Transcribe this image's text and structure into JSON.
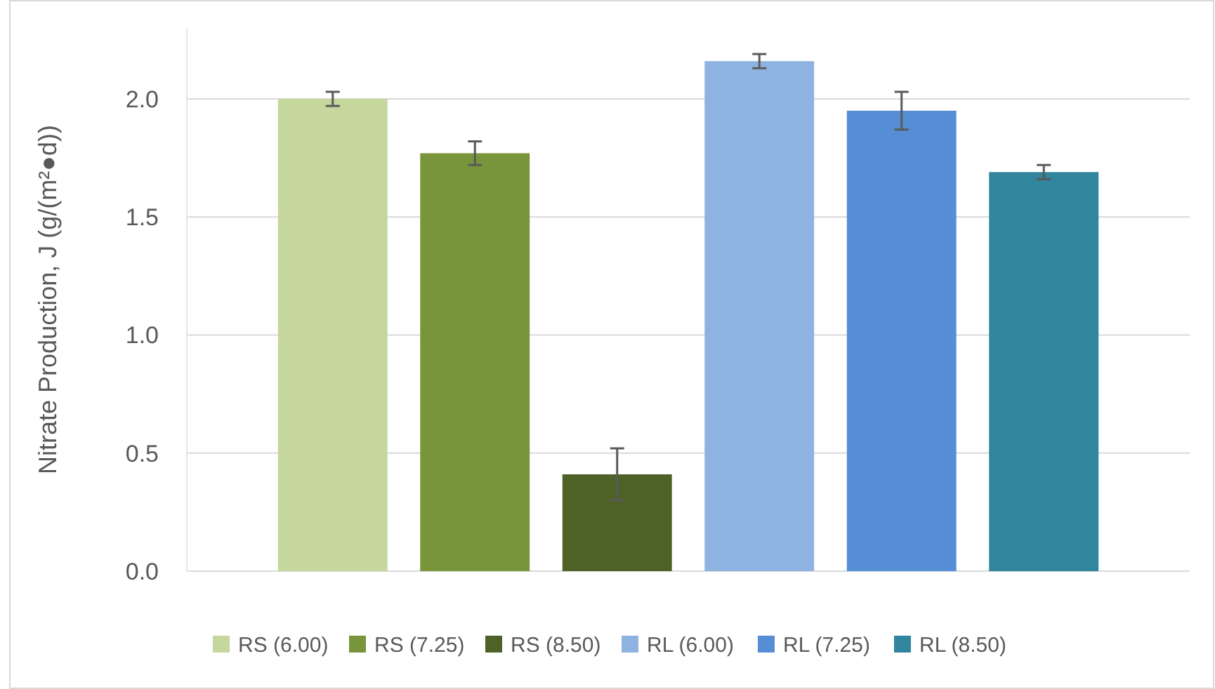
{
  "chart_data": {
    "type": "bar",
    "ylabel": "Nitrate Production, J (g/(m²●d))",
    "categories": [
      null
    ],
    "ylim": [
      0,
      2.3
    ],
    "yticks": [
      {
        "value": 0,
        "label": "0.0"
      },
      {
        "value": 0.5,
        "label": "0.5"
      },
      {
        "value": 1,
        "label": "1.0"
      },
      {
        "value": 1.5,
        "label": "1.5"
      },
      {
        "value": 2,
        "label": "2.0"
      }
    ],
    "grid": "y",
    "legend": "bottom",
    "series": [
      {
        "name": "RS (6.00)",
        "color": "#c5d79c",
        "values": [
          2.0
        ],
        "errors": [
          0.03
        ]
      },
      {
        "name": "RS (7.25)",
        "color": "#79953c",
        "values": [
          1.77
        ],
        "errors": [
          0.05
        ]
      },
      {
        "name": "RS (8.50)",
        "color": "#4e6228",
        "values": [
          0.41
        ],
        "errors": [
          0.11
        ]
      },
      {
        "name": "RL (6.00)",
        "color": "#8fb3e1",
        "values": [
          2.16
        ],
        "errors": [
          0.03
        ]
      },
      {
        "name": "RL (7.25)",
        "color": "#558ed5",
        "values": [
          1.95
        ],
        "errors": [
          0.08
        ]
      },
      {
        "name": "RL (8.50)",
        "color": "#31859c",
        "values": [
          1.69
        ],
        "errors": [
          0.03
        ]
      }
    ]
  }
}
